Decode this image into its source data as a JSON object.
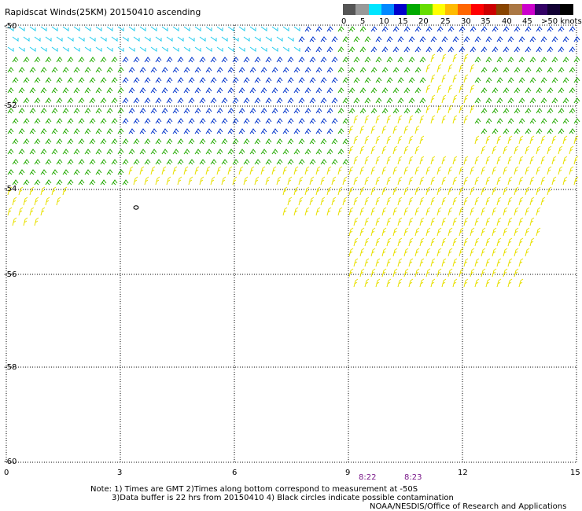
{
  "title": "Rapidscat Winds(25KM) 20150410 ascending",
  "legend": {
    "ticks": [
      "0",
      "5",
      "10",
      "15",
      "20",
      "25",
      "30",
      "35",
      "40",
      "45",
      ">50 knots"
    ],
    "colors": [
      "#555555",
      "#999999",
      "#00e5ff",
      "#0088ff",
      "#0000cc",
      "#00aa00",
      "#66dd00",
      "#ffff00",
      "#ffbb00",
      "#ff6600",
      "#ff0000",
      "#cc0000",
      "#884400",
      "#aa7744",
      "#cc00cc",
      "#330066",
      "#110033",
      "#000000"
    ]
  },
  "map": {
    "lat_labels": [
      "-50",
      "-52",
      "-54",
      "-56",
      "-58",
      "-60"
    ],
    "lon_labels": [
      "0",
      "3",
      "6",
      "9",
      "12",
      "15"
    ],
    "overpass_times": [
      "8:22",
      "8:23"
    ]
  },
  "notes": {
    "line1": "Note: 1) Times are GMT 2)Times along bottom correspond to measurement at -50S",
    "line2": "3)Data buffer is 22 hrs from 20150410 4) Black circles indicate possible contamination",
    "line3": "NOAA/NESDIS/Office of Research and Applications"
  },
  "wind_colors": {
    "cyan": "#22ccee",
    "blue": "#0033cc",
    "green": "#22aa00",
    "yellow": "#e8e000",
    "black": "#000000"
  }
}
